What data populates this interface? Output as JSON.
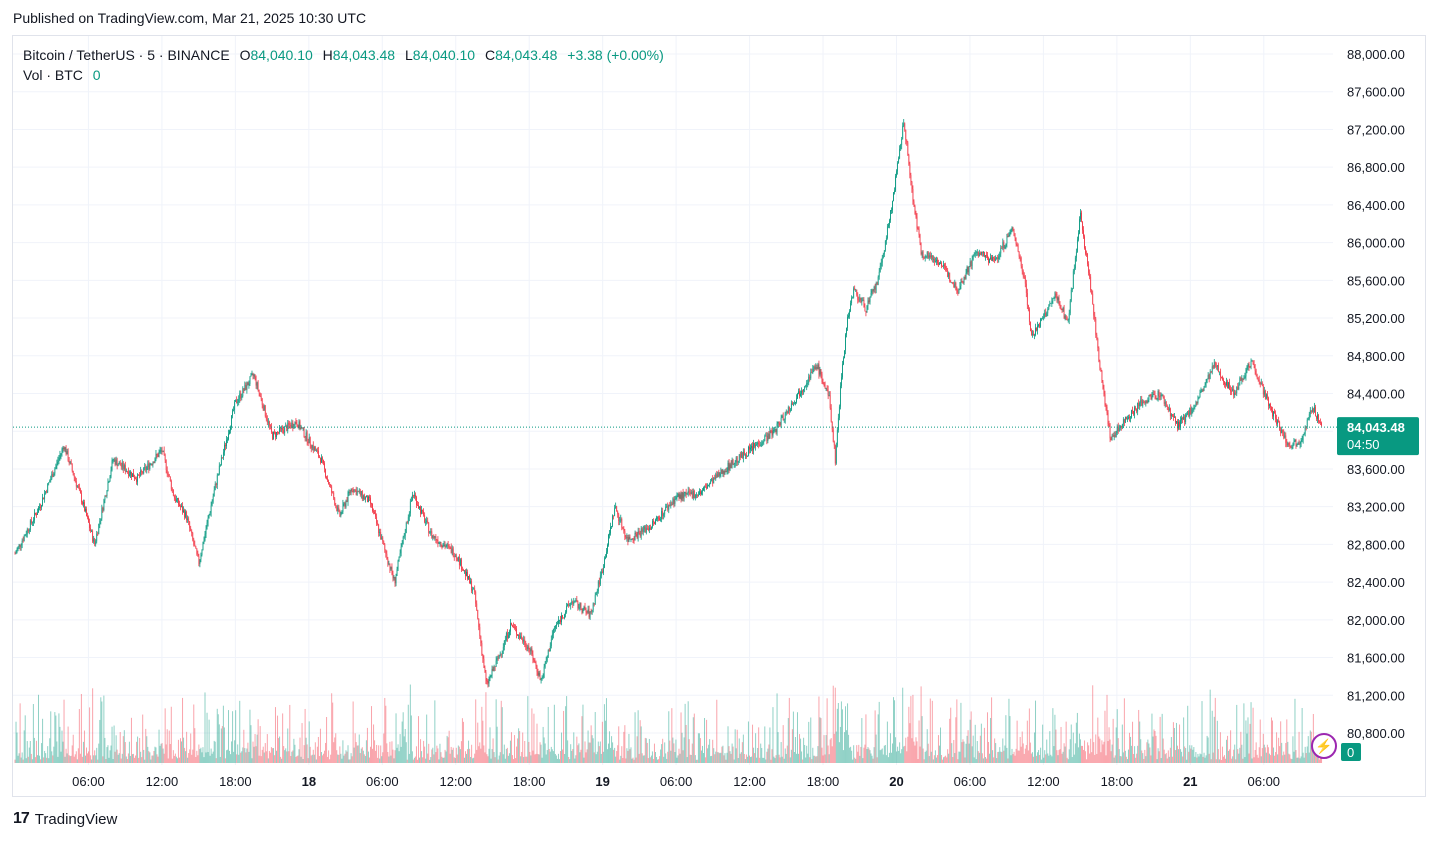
{
  "header": {
    "published": "Published on TradingView.com, Mar 21, 2025 10:30 UTC"
  },
  "legend": {
    "symbol": "Bitcoin / TetherUS · 5 · BINANCE",
    "o_label": "O",
    "o_value": "84,040.10",
    "h_label": "H",
    "h_value": "84,043.48",
    "l_label": "L",
    "l_value": "84,040.10",
    "c_label": "C",
    "c_value": "84,043.48",
    "change": "+3.38 (+0.00%)",
    "vol_label": "Vol · BTC",
    "vol_value": "0"
  },
  "footer": {
    "brand": "TradingView",
    "logo": "17"
  },
  "colors": {
    "up": "#089981",
    "down": "#f23645",
    "grid": "#f0f3fa",
    "axis_text": "#131722",
    "price_tag": "#089981"
  },
  "icons": {
    "indicator": "bolt-icon"
  },
  "chart_data": {
    "type": "candlestick",
    "y_axis": {
      "ticks": [
        80800,
        81200,
        81600,
        82000,
        82400,
        82800,
        83200,
        83600,
        84000,
        84400,
        84800,
        85200,
        85600,
        86000,
        86400,
        86800,
        87200,
        87600,
        88000
      ],
      "tick_labels": [
        "80,800.00",
        "81,200.00",
        "81,600.00",
        "82,000.00",
        "82,400.00",
        "82,800.00",
        "83,200.00",
        "83,600.00",
        "84,000.00",
        "84,400.00",
        "84,800.00",
        "85,200.00",
        "85,600.00",
        "86,000.00",
        "86,400.00",
        "86,800.00",
        "87,200.00",
        "87,600.00",
        "88,000.00"
      ],
      "range": [
        80500,
        88300
      ]
    },
    "x_axis": {
      "range_hours": [
        0,
        107
      ],
      "ticks": [
        6,
        12,
        18,
        24,
        30,
        36,
        42,
        48,
        54,
        60,
        66,
        72,
        78,
        84,
        90,
        96,
        102
      ],
      "tick_labels": [
        "06:00",
        "12:00",
        "18:00",
        "18",
        "06:00",
        "12:00",
        "18:00",
        "19",
        "06:00",
        "12:00",
        "18:00",
        "20",
        "06:00",
        "12:00",
        "18:00",
        "21",
        "06:00"
      ],
      "bold": [
        false,
        false,
        false,
        true,
        false,
        false,
        false,
        true,
        false,
        false,
        false,
        true,
        false,
        false,
        false,
        true,
        false
      ]
    },
    "last_price": {
      "label": "84,043.48",
      "countdown": "04:50",
      "value": 84043.48
    },
    "volume_last": "0",
    "price_path": [
      {
        "h": 0,
        "p": 82700
      },
      {
        "h": 2,
        "p": 83200
      },
      {
        "h": 4,
        "p": 83850
      },
      {
        "h": 5.5,
        "p": 83250
      },
      {
        "h": 6.5,
        "p": 82800
      },
      {
        "h": 8,
        "p": 83700
      },
      {
        "h": 10,
        "p": 83500
      },
      {
        "h": 12,
        "p": 83800
      },
      {
        "h": 13,
        "p": 83300
      },
      {
        "h": 14,
        "p": 83100
      },
      {
        "h": 15,
        "p": 82600
      },
      {
        "h": 16.5,
        "p": 83500
      },
      {
        "h": 18,
        "p": 84300
      },
      {
        "h": 19.5,
        "p": 84600
      },
      {
        "h": 21,
        "p": 83950
      },
      {
        "h": 23,
        "p": 84100
      },
      {
        "h": 25,
        "p": 83700
      },
      {
        "h": 26.5,
        "p": 83100
      },
      {
        "h": 27.5,
        "p": 83400
      },
      {
        "h": 29,
        "p": 83250
      },
      {
        "h": 31,
        "p": 82400
      },
      {
        "h": 32.5,
        "p": 83350
      },
      {
        "h": 34,
        "p": 82900
      },
      {
        "h": 36,
        "p": 82700
      },
      {
        "h": 37.5,
        "p": 82300
      },
      {
        "h": 38.5,
        "p": 81300
      },
      {
        "h": 39.5,
        "p": 81600
      },
      {
        "h": 40.5,
        "p": 81950
      },
      {
        "h": 42,
        "p": 81700
      },
      {
        "h": 43,
        "p": 81350
      },
      {
        "h": 44,
        "p": 81900
      },
      {
        "h": 45.5,
        "p": 82200
      },
      {
        "h": 47,
        "p": 82050
      },
      {
        "h": 48,
        "p": 82550
      },
      {
        "h": 49,
        "p": 83200
      },
      {
        "h": 50,
        "p": 82850
      },
      {
        "h": 52,
        "p": 83000
      },
      {
        "h": 54,
        "p": 83300
      },
      {
        "h": 56,
        "p": 83350
      },
      {
        "h": 58,
        "p": 83600
      },
      {
        "h": 60,
        "p": 83800
      },
      {
        "h": 62,
        "p": 84000
      },
      {
        "h": 64,
        "p": 84400
      },
      {
        "h": 65.5,
        "p": 84700
      },
      {
        "h": 66.5,
        "p": 84350
      },
      {
        "h": 67,
        "p": 83700
      },
      {
        "h": 67.5,
        "p": 84600
      },
      {
        "h": 68,
        "p": 85200
      },
      {
        "h": 68.5,
        "p": 85500
      },
      {
        "h": 69.5,
        "p": 85300
      },
      {
        "h": 70.5,
        "p": 85600
      },
      {
        "h": 71.5,
        "p": 86300
      },
      {
        "h": 72.2,
        "p": 86900
      },
      {
        "h": 72.6,
        "p": 87300
      },
      {
        "h": 73.2,
        "p": 86600
      },
      {
        "h": 74,
        "p": 85900
      },
      {
        "h": 75.5,
        "p": 85800
      },
      {
        "h": 77,
        "p": 85500
      },
      {
        "h": 78.5,
        "p": 85900
      },
      {
        "h": 80,
        "p": 85800
      },
      {
        "h": 81.5,
        "p": 86150
      },
      {
        "h": 82.5,
        "p": 85600
      },
      {
        "h": 83,
        "p": 85000
      },
      {
        "h": 84,
        "p": 85200
      },
      {
        "h": 85,
        "p": 85450
      },
      {
        "h": 86,
        "p": 85150
      },
      {
        "h": 87,
        "p": 86300
      },
      {
        "h": 87.8,
        "p": 85600
      },
      {
        "h": 88.5,
        "p": 84800
      },
      {
        "h": 89.5,
        "p": 83900
      },
      {
        "h": 90.5,
        "p": 84100
      },
      {
        "h": 92,
        "p": 84300
      },
      {
        "h": 93.5,
        "p": 84400
      },
      {
        "h": 95,
        "p": 84050
      },
      {
        "h": 96.5,
        "p": 84300
      },
      {
        "h": 98,
        "p": 84700
      },
      {
        "h": 99.5,
        "p": 84400
      },
      {
        "h": 101,
        "p": 84750
      },
      {
        "h": 102.5,
        "p": 84250
      },
      {
        "h": 104,
        "p": 83850
      },
      {
        "h": 105,
        "p": 83900
      },
      {
        "h": 106,
        "p": 84250
      },
      {
        "h": 106.8,
        "p": 84043
      }
    ]
  }
}
